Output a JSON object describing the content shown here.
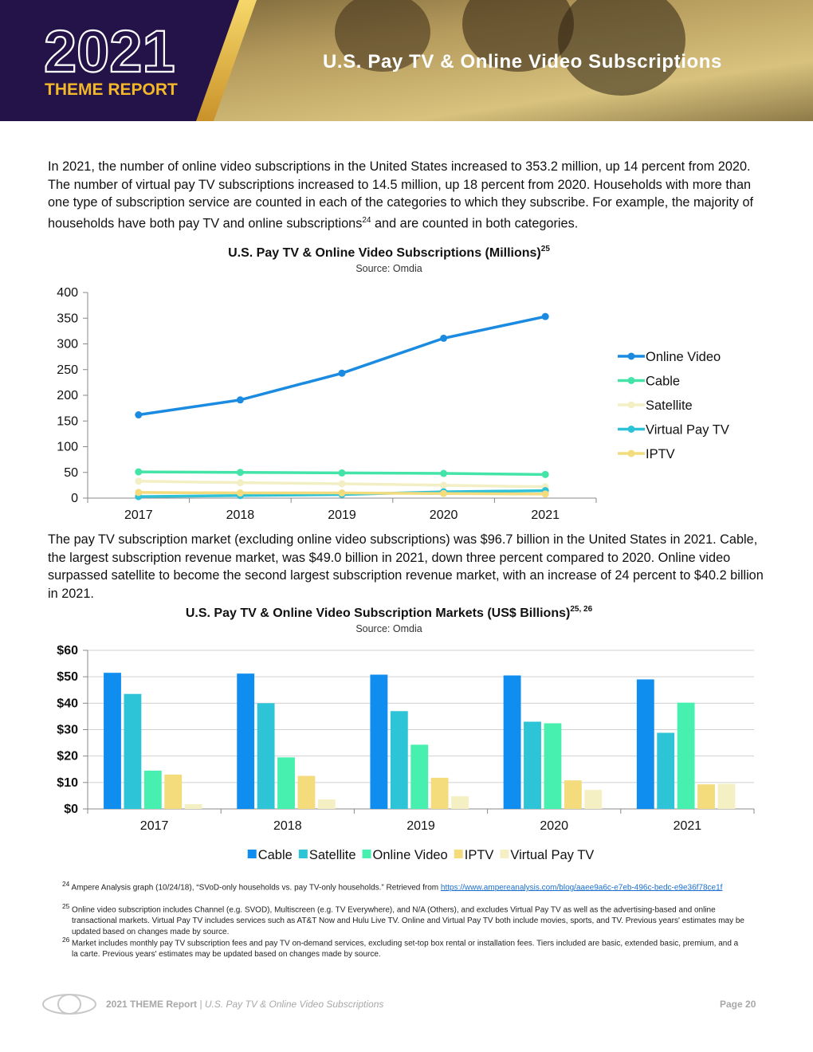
{
  "header": {
    "year": "2021",
    "report": "THEME REPORT",
    "title": "U.S. Pay TV & Online Video Subscriptions"
  },
  "paragraphs": [
    {
      "text": "In 2021, the number of online video subscriptions in the United States increased to 353.2 million, up 14 percent from 2020. The number of virtual pay TV subscriptions increased to 14.5 million, up 18 percent from 2020. Households with more than one type of subscription service are counted in each of the categories to which they subscribe. For example, the majority of households have both pay TV and online subscriptions",
      "note": "24",
      "rest": " and are counted in both categories."
    },
    {
      "text": "The pay TV subscription market (excluding online video subscriptions) was $96.7 billion in the United States in 2021. Cable, the largest subscription revenue market, was $49.0 billion in 2021, down three percent compared to 2020. Online video surpassed satellite to become the second largest subscription revenue market, with an increase of 24 percent to $40.2 billion in 2021."
    }
  ],
  "chart_data": [
    {
      "type": "line",
      "title": "U.S. Pay TV & Online Video Subscriptions (Millions)",
      "title_note": "25",
      "subtitle": "Source: Omdia",
      "categories": [
        "2017",
        "2018",
        "2019",
        "2020",
        "2021"
      ],
      "series": [
        {
          "name": "Online Video",
          "color": "#1a8be0",
          "values": [
            162,
            191,
            243,
            311,
            353.2
          ]
        },
        {
          "name": "Cable",
          "color": "#44e4a8",
          "values": [
            51,
            50,
            49,
            48,
            46
          ]
        },
        {
          "name": "Satellite",
          "color": "#f3efc4",
          "values": [
            33,
            30,
            28,
            25,
            22
          ]
        },
        {
          "name": "Virtual Pay TV",
          "color": "#2ec2d8",
          "values": [
            3,
            5,
            7,
            12.3,
            14.5
          ]
        },
        {
          "name": "IPTV",
          "color": "#f2dc7e",
          "values": [
            11,
            10,
            10,
            9,
            8
          ]
        }
      ],
      "ylim": [
        0,
        400
      ],
      "yticks": [
        0,
        50,
        100,
        150,
        200,
        250,
        300,
        350,
        400
      ],
      "grid": false,
      "legend": "right"
    },
    {
      "type": "bar",
      "title": "U.S. Pay TV & Online Video Subscription Markets (US$ Billions)",
      "title_note": "25, 26",
      "subtitle": "Source: Omdia",
      "categories": [
        "2017",
        "2018",
        "2019",
        "2020",
        "2021"
      ],
      "series": [
        {
          "name": "Cable",
          "color": "#108ef0",
          "values": [
            51.5,
            51.2,
            50.8,
            50.5,
            49.0
          ]
        },
        {
          "name": "Satellite",
          "color": "#2ec4d8",
          "values": [
            43.5,
            40,
            37,
            33,
            28.8
          ]
        },
        {
          "name": "Online Video",
          "color": "#48f0b0",
          "values": [
            14.5,
            19.5,
            24.3,
            32.4,
            40.2
          ]
        },
        {
          "name": "IPTV",
          "color": "#f4dc7c",
          "values": [
            13,
            12.5,
            11.8,
            10.8,
            9.3
          ]
        },
        {
          "name": "Virtual Pay TV",
          "color": "#f5f0c4",
          "values": [
            1.8,
            3.6,
            4.8,
            7.2,
            9.5
          ]
        }
      ],
      "ylim": [
        0,
        60
      ],
      "yticks": [
        {
          "value": 0,
          "label": "$0"
        },
        {
          "value": 10,
          "label": "$10"
        },
        {
          "value": 20,
          "label": "$20"
        },
        {
          "value": 30,
          "label": "$30"
        },
        {
          "value": 40,
          "label": "$40"
        },
        {
          "value": 50,
          "label": "$50"
        },
        {
          "value": 60,
          "label": "$60"
        }
      ],
      "grid": true,
      "legend": "bottom"
    }
  ],
  "footnotes": [
    {
      "number": "24",
      "text": "Ampere Analysis graph (10/24/18), “SVoD-only households vs. pay TV-only households.” Retrieved from ",
      "link": "https://www.ampereanalysis.com/blog/aaee9a6c-e7eb-496c-bedc-e9e36f78ce1f"
    },
    {
      "number": "25",
      "text": "Online video subscription includes Channel (e.g. SVOD), Multiscreen (e.g. TV Everywhere), and N/A (Others), and excludes Virtual Pay TV as well as the advertising-based and online transactional markets. Virtual Pay TV includes services such as AT&T Now and Hulu Live TV. Online and Virtual Pay TV both include movies, sports, and TV. Previous years' estimates may be updated based on changes made by source."
    },
    {
      "number": "26",
      "text": "Market includes monthly pay TV subscription fees and pay TV on-demand services, excluding set-top box rental or installation fees. Tiers included are basic, extended basic, premium, and a la carte. Previous years' estimates may be updated based on changes made by source."
    }
  ],
  "footer": {
    "report": "2021 THEME Report",
    "section": "| U.S. Pay TV & Online Video Subscriptions",
    "page": "Page 20"
  }
}
